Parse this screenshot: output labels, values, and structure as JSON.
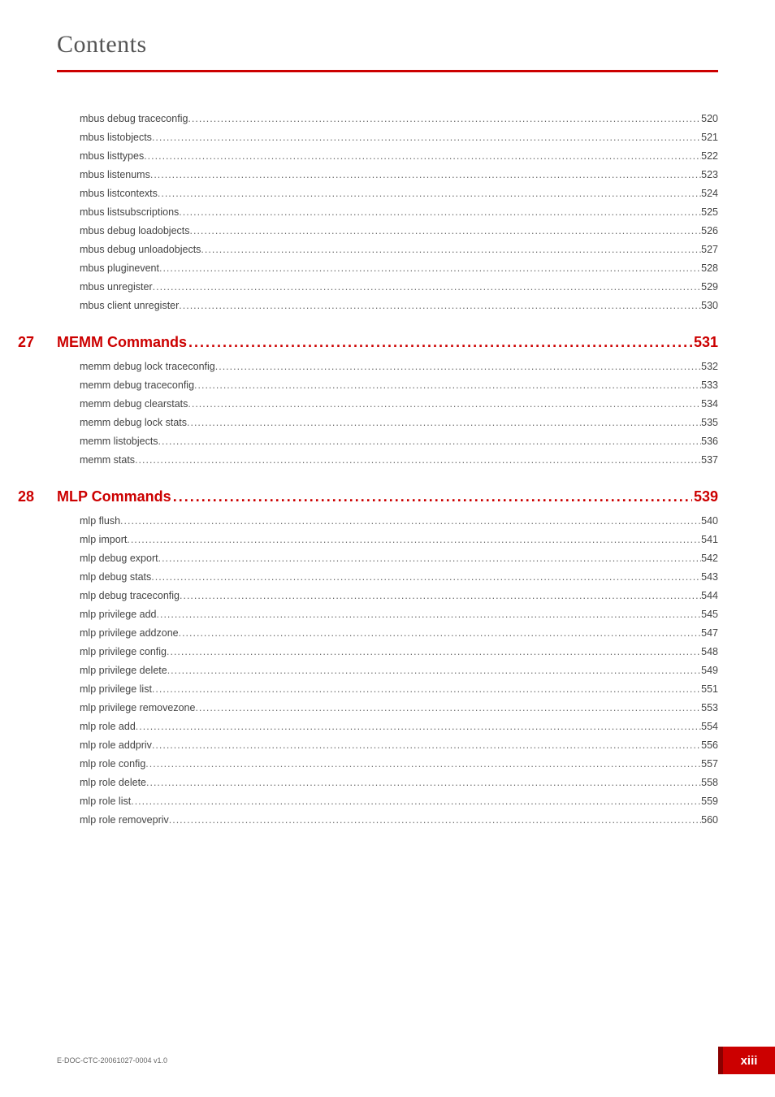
{
  "header": {
    "title": "Contents"
  },
  "sections": [
    {
      "items": [
        {
          "label": "mbus debug traceconfig",
          "page": "520"
        },
        {
          "label": "mbus listobjects",
          "page": "521"
        },
        {
          "label": "mbus listtypes",
          "page": "522"
        },
        {
          "label": "mbus listenums",
          "page": "523"
        },
        {
          "label": "mbus listcontexts",
          "page": "524"
        },
        {
          "label": "mbus listsubscriptions",
          "page": "525"
        },
        {
          "label": "mbus debug loadobjects",
          "page": "526"
        },
        {
          "label": "mbus debug  unloadobjects",
          "page": "527"
        },
        {
          "label": "mbus pluginevent",
          "page": "528"
        },
        {
          "label": "mbus unregister",
          "page": "529"
        },
        {
          "label": "mbus client unregister",
          "page": "530"
        }
      ]
    },
    {
      "num": "27",
      "title": "MEMM Commands",
      "titlepage": "531",
      "items": [
        {
          "label": "memm debug lock traceconfig",
          "page": "532"
        },
        {
          "label": "memm debug traceconfig",
          "page": "533"
        },
        {
          "label": "memm debug clearstats",
          "page": "534"
        },
        {
          "label": "memm debug lock stats",
          "page": "535"
        },
        {
          "label": "memm listobjects",
          "page": "536"
        },
        {
          "label": "memm stats",
          "page": "537"
        }
      ]
    },
    {
      "num": "28",
      "title": "MLP Commands",
      "titlepage": "539",
      "items": [
        {
          "label": "mlp flush",
          "page": "540"
        },
        {
          "label": "mlp import",
          "page": "541"
        },
        {
          "label": "mlp debug export",
          "page": "542"
        },
        {
          "label": "mlp debug stats",
          "page": "543"
        },
        {
          "label": "mlp debug traceconfig",
          "page": "544"
        },
        {
          "label": "mlp privilege add",
          "page": "545"
        },
        {
          "label": "mlp privilege addzone",
          "page": "547"
        },
        {
          "label": "mlp privilege config",
          "page": "548"
        },
        {
          "label": "mlp privilege delete",
          "page": "549"
        },
        {
          "label": "mlp privilege list",
          "page": "551"
        },
        {
          "label": "mlp privilege removezone",
          "page": "553"
        },
        {
          "label": "mlp role add",
          "page": "554"
        },
        {
          "label": "mlp role addpriv",
          "page": "556"
        },
        {
          "label": "mlp role config",
          "page": "557"
        },
        {
          "label": "mlp role delete",
          "page": "558"
        },
        {
          "label": "mlp role list",
          "page": "559"
        },
        {
          "label": "mlp role removepriv",
          "page": "560"
        }
      ]
    }
  ],
  "footer": {
    "docid": "E-DOC-CTC-20061027-0004 v1.0",
    "pagenum": "xiii"
  },
  "style": {
    "accent": "#cc0000",
    "accent_dark": "#8a0000",
    "text": "#444444",
    "header_text": "#555555"
  }
}
